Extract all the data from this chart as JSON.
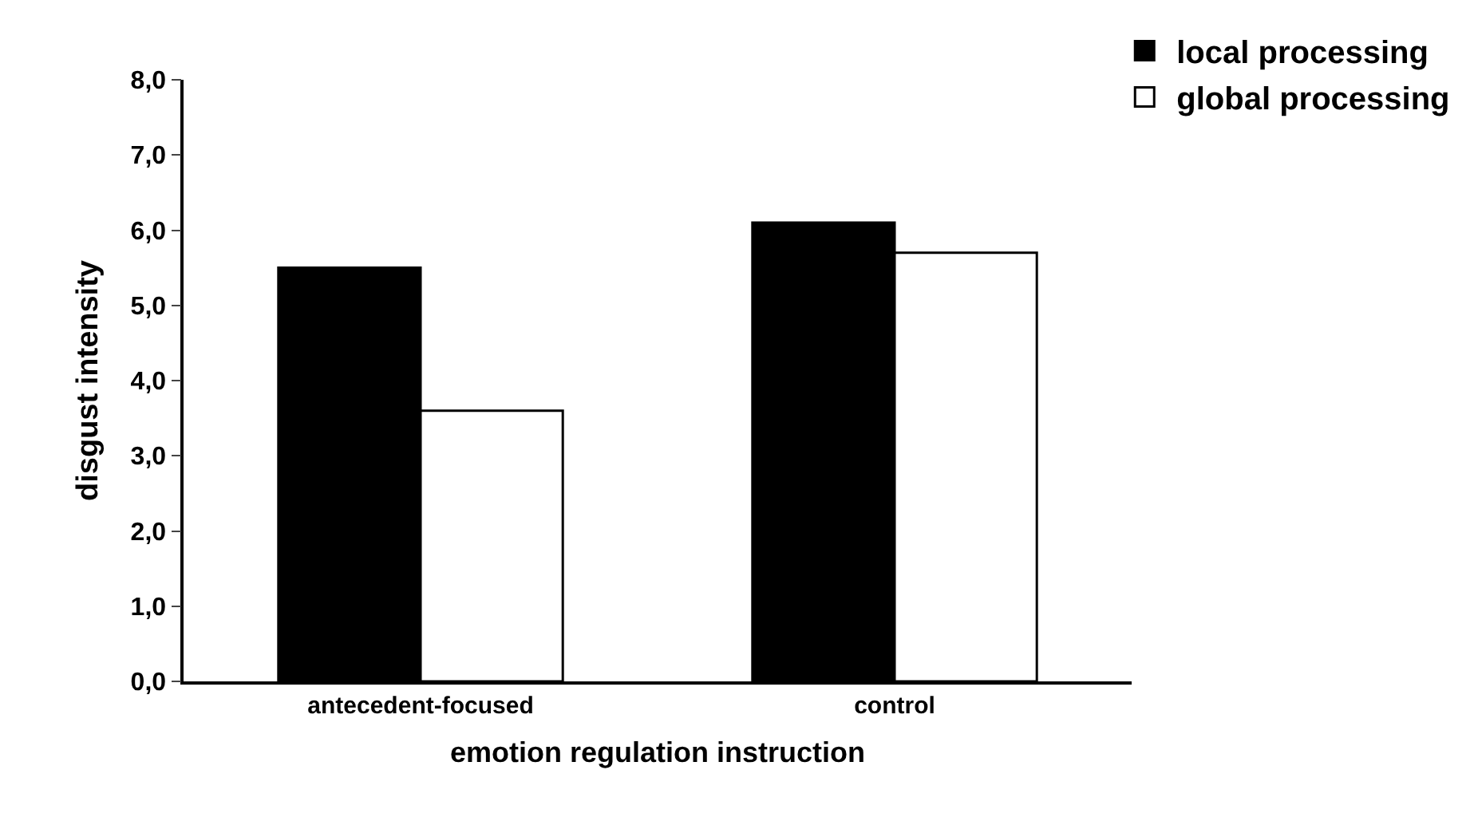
{
  "chart_data": {
    "type": "bar",
    "xlabel": "emotion regulation instruction",
    "ylabel": "disgust intensity",
    "categories": [
      "antecedent-focused",
      "control"
    ],
    "series": [
      {
        "name": "local processing",
        "color": "#000000",
        "values": [
          5.5,
          6.1
        ]
      },
      {
        "name": "global processing",
        "color": "#ffffff",
        "values": [
          3.6,
          5.7
        ]
      }
    ],
    "ylim": [
      0,
      8
    ],
    "yticks": [
      {
        "value": 0,
        "label": "0,0"
      },
      {
        "value": 1,
        "label": "1,0"
      },
      {
        "value": 2,
        "label": "2,0"
      },
      {
        "value": 3,
        "label": "3,0"
      },
      {
        "value": 4,
        "label": "4,0"
      },
      {
        "value": 5,
        "label": "5,0"
      },
      {
        "value": 6,
        "label": "6,0"
      },
      {
        "value": 7,
        "label": "7,0"
      },
      {
        "value": 8,
        "label": "8,0"
      }
    ],
    "legend": "top right"
  }
}
